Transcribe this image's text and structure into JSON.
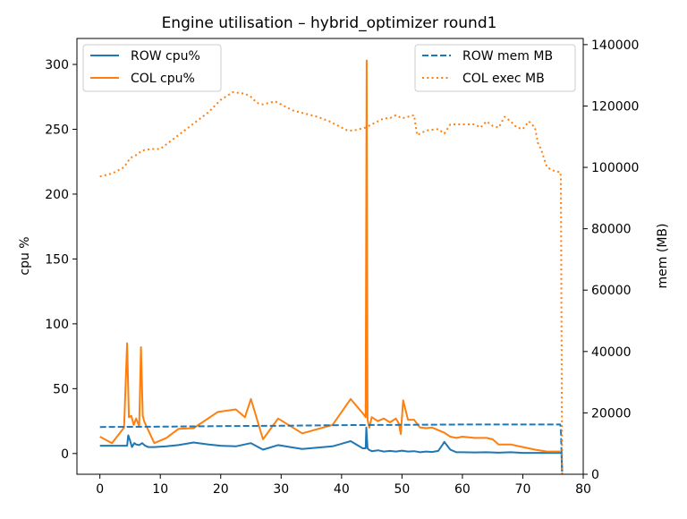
{
  "chart_data": {
    "type": "line",
    "title": "Engine utilisation – hybrid_optimizer round1",
    "xlabel": "",
    "ylabel": "cpu %",
    "y2label": "mem (MB)",
    "xlim": [
      -3.8,
      80
    ],
    "ylim": [
      -16,
      320
    ],
    "y2lim": [
      0,
      142000
    ],
    "xticks": [
      0,
      10,
      20,
      30,
      40,
      50,
      60,
      70,
      80
    ],
    "yticks": [
      0,
      50,
      100,
      150,
      200,
      250,
      300
    ],
    "y2ticks": [
      0,
      20000,
      40000,
      60000,
      80000,
      100000,
      120000,
      140000
    ],
    "grid": false,
    "legend_left": "top-left",
    "legend_right": "top-right",
    "colors": {
      "row": "#1f77b4",
      "col": "#ff7f0e"
    },
    "series": [
      {
        "name": "ROW cpu%",
        "axis": "left",
        "style": "solid",
        "color": "#1f77b4",
        "x": [
          0,
          2,
          4.5,
          4.7,
          5,
          5.3,
          5.7,
          6,
          6.5,
          7,
          7.5,
          8,
          9,
          11,
          13,
          15.5,
          18,
          20,
          22.5,
          25,
          27,
          29.5,
          31.5,
          33.5,
          36,
          38.5,
          41.5,
          43.5,
          44,
          44.1,
          44.3,
          44.5,
          45,
          46,
          47,
          48,
          49,
          50,
          51,
          52,
          53,
          54,
          55,
          56,
          56.6,
          57,
          57.5,
          58,
          59,
          60,
          62,
          64,
          66,
          68,
          70,
          72,
          74,
          76.2,
          76.4,
          76.5
        ],
        "y": [
          6,
          6,
          6,
          14,
          10,
          5,
          8,
          7,
          6.5,
          8,
          6,
          5,
          5,
          5.5,
          6.5,
          8.5,
          7,
          6,
          5.5,
          8,
          3,
          6.5,
          5,
          3.5,
          4.5,
          5.5,
          9.5,
          4,
          4,
          20,
          4,
          3,
          1.8,
          2.5,
          1.5,
          2,
          1.5,
          2.2,
          1.5,
          1.8,
          1,
          1.5,
          1.2,
          2,
          6,
          9,
          6,
          3,
          1,
          1,
          0.8,
          1,
          0.6,
          1,
          0.5,
          0.5,
          0.5,
          0.5,
          0.5,
          -14
        ]
      },
      {
        "name": "COL cpu%",
        "axis": "left",
        "style": "solid",
        "color": "#ff7f0e",
        "x": [
          0,
          2,
          4,
          4.5,
          4.8,
          5.2,
          5.6,
          6,
          6.5,
          6.8,
          7.1,
          7.4,
          8,
          9,
          11,
          13,
          15.5,
          19.5,
          22.5,
          24,
          25,
          27,
          29.5,
          33.5,
          38.5,
          41.5,
          43.5,
          44,
          44.15,
          44.3,
          44.6,
          45,
          46,
          47,
          48,
          49,
          49.5,
          49.8,
          50.2,
          51,
          52,
          53,
          54,
          55,
          56,
          57,
          58,
          59,
          60,
          62,
          64,
          65,
          66,
          68,
          70,
          72,
          74,
          76.2
        ],
        "y": [
          13,
          8,
          20,
          85,
          28,
          29,
          22,
          27,
          21,
          82,
          29,
          24,
          18,
          8,
          12,
          19,
          19.5,
          32,
          34,
          28,
          42,
          11,
          27,
          15.5,
          22,
          42,
          31,
          28,
          303,
          26,
          20,
          28,
          25,
          27,
          24,
          27,
          23,
          15,
          41,
          26,
          26,
          20,
          19.5,
          20,
          18,
          16,
          13,
          12,
          13,
          12,
          12,
          11,
          7,
          7,
          5,
          3,
          1.5,
          1.5
        ]
      },
      {
        "name": "ROW mem MB",
        "axis": "right",
        "style": "dashed",
        "color": "#1f77b4",
        "x": [
          0,
          10,
          20,
          30,
          40,
          50,
          60,
          70,
          76.2,
          76.3,
          76.5
        ],
        "y": [
          15400,
          15500,
          15700,
          15800,
          16000,
          16100,
          16200,
          16200,
          16200,
          15000,
          400
        ]
      },
      {
        "name": "COL exec MB",
        "axis": "right",
        "style": "dotted",
        "color": "#ff7f0e",
        "x": [
          0,
          2,
          4,
          5,
          6,
          7,
          8.5,
          10,
          12,
          14,
          16,
          18,
          20,
          22,
          24,
          25,
          26,
          27,
          28,
          29,
          30,
          31,
          32,
          33,
          34,
          36,
          38,
          40,
          41,
          42,
          43,
          44,
          45,
          46,
          47,
          48,
          49,
          50,
          51,
          52,
          52.5,
          54,
          56,
          57,
          58,
          60,
          62,
          63,
          64,
          65,
          66,
          67,
          68,
          69,
          70,
          71,
          72,
          72.5,
          73,
          74,
          75,
          76,
          76.2,
          76.3,
          76.5
        ],
        "y": [
          97000,
          98000,
          100000,
          103000,
          104000,
          105500,
          106000,
          106000,
          109000,
          112000,
          115000,
          118000,
          122000,
          124500,
          124000,
          123000,
          121000,
          120500,
          121000,
          121500,
          120500,
          119500,
          118500,
          118000,
          117500,
          116500,
          115000,
          113000,
          112000,
          112000,
          112500,
          113000,
          114000,
          115000,
          116000,
          116000,
          117000,
          116000,
          116500,
          117000,
          110500,
          112000,
          112500,
          111000,
          114000,
          114000,
          114000,
          113000,
          115000,
          113500,
          113000,
          116500,
          115000,
          113000,
          112500,
          115000,
          113000,
          108000,
          106000,
          100000,
          99000,
          98500,
          98500,
          97000,
          0
        ]
      }
    ]
  }
}
